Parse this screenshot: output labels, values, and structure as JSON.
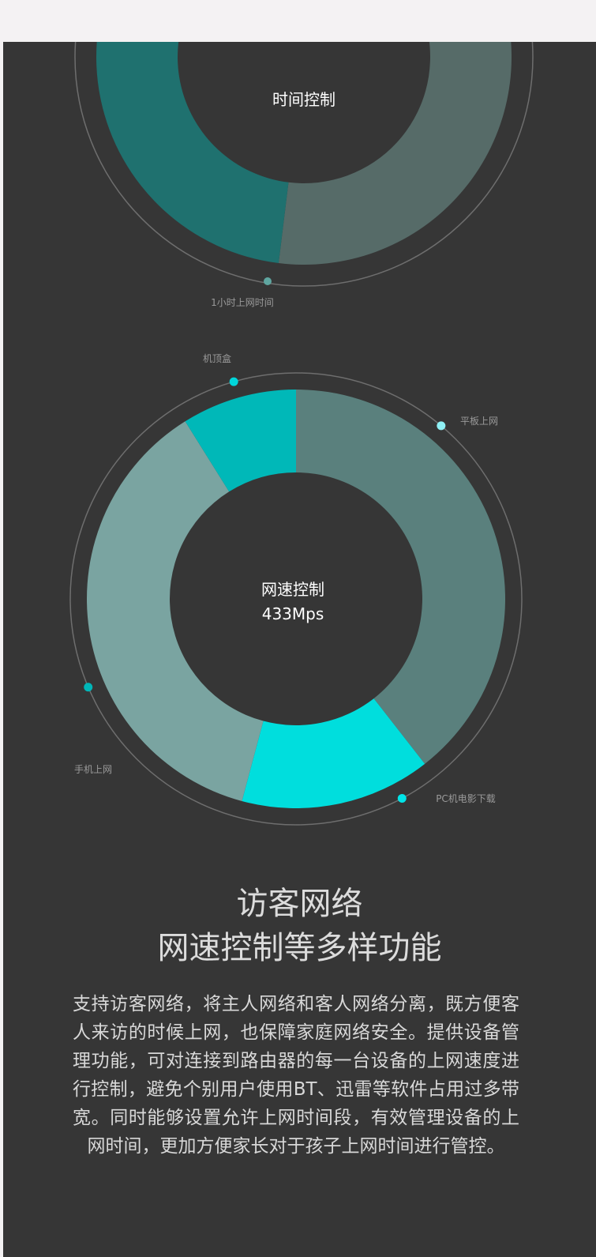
{
  "time_chart": {
    "center_label": "时间控制",
    "callout": "1小时上网时间",
    "segments": [
      {
        "name": "gray",
        "start_deg": -30,
        "end_deg": 187,
        "color": "#566b68"
      },
      {
        "name": "teal",
        "start_deg": 187,
        "end_deg": 330,
        "color": "#1f716f"
      }
    ]
  },
  "speed_chart": {
    "center_label": "网速控制",
    "center_value": "433Mps",
    "segments": [
      {
        "label": "平板上网",
        "start_deg": 0,
        "end_deg": 142,
        "color": "#5a807d",
        "dot": "#8ff0f5"
      },
      {
        "label": "PC机电影下载",
        "start_deg": 142,
        "end_deg": 195,
        "color": "#00dedd",
        "dot": "#00e5e8"
      },
      {
        "label": "手机上网",
        "start_deg": 195,
        "end_deg": 328,
        "color": "#7aa4a1",
        "dot": "#00b6b8"
      },
      {
        "label": "机顶盒",
        "start_deg": 328,
        "end_deg": 360,
        "color": "#00b8b8",
        "dot": "#00d6da"
      }
    ]
  },
  "headline": {
    "line1": "访客网络",
    "line2": "网速控制等多样功能"
  },
  "description": "支持访客网络，将主人网络和客人网络分离，既方便客人来访的时候上网，也保障家庭网络安全。提供设备管理功能，可对连接到路由器的每一台设备的上网速度进行控制，避免个别用户使用BT、迅雷等软件占用过多带宽。同时能够设置允许上网时间段，有效管理设备的上网时间，更加方便家长对于孩子上网时间进行管控。"
}
